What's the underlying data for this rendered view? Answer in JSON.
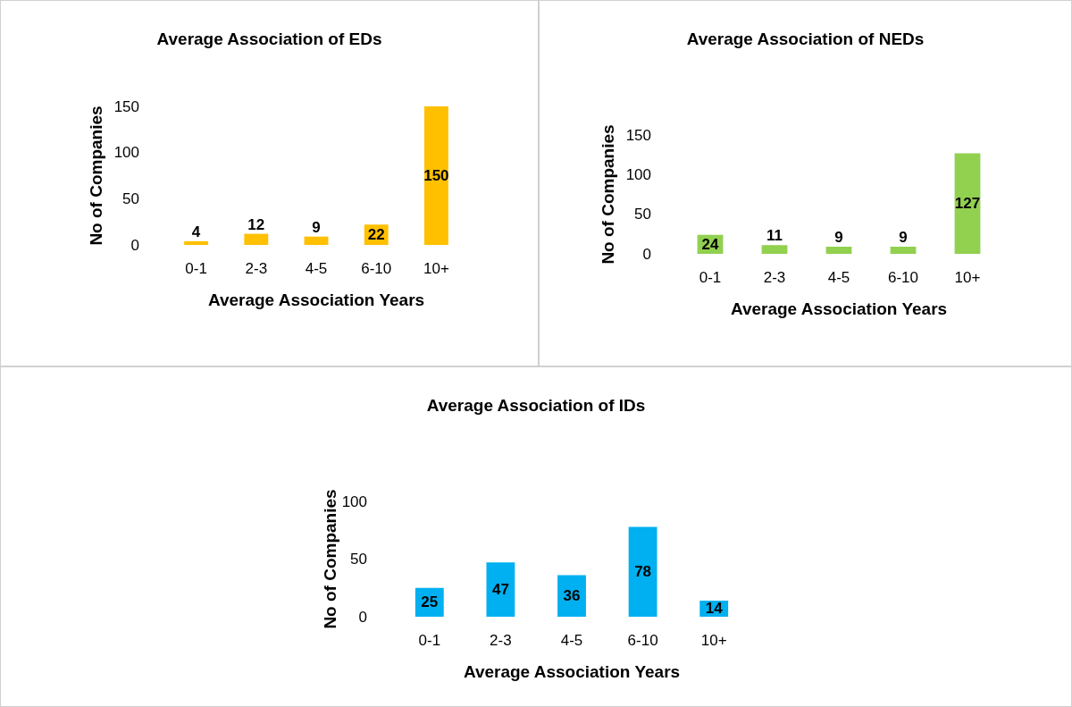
{
  "chart_data": [
    {
      "type": "bar",
      "title": "Average Association of EDs",
      "xlabel": "Average Association Years",
      "ylabel": "No of Companies",
      "categories": [
        "0-1",
        "2-3",
        "4-5",
        "6-10",
        "10+"
      ],
      "values": [
        4,
        12,
        9,
        22,
        150
      ],
      "color": "#ffc000",
      "ylim": [
        0,
        150
      ],
      "yticks": [
        0,
        50,
        100,
        150
      ],
      "data_labels": true,
      "grid": false
    },
    {
      "type": "bar",
      "title": "Average Association of NEDs",
      "xlabel": "Average Association Years",
      "ylabel": "No of Companies",
      "categories": [
        "0-1",
        "2-3",
        "4-5",
        "6-10",
        "10+"
      ],
      "values": [
        24,
        11,
        9,
        9,
        127
      ],
      "color": "#92d050",
      "ylim": [
        0,
        150
      ],
      "yticks": [
        0,
        50,
        100,
        150
      ],
      "data_labels": true,
      "grid": false
    },
    {
      "type": "bar",
      "title": "Average Association of IDs",
      "xlabel": "Average Association Years",
      "ylabel": "No of Companies",
      "categories": [
        "0-1",
        "2-3",
        "4-5",
        "6-10",
        "10+"
      ],
      "values": [
        25,
        47,
        36,
        78,
        14
      ],
      "color": "#00b0f0",
      "ylim": [
        0,
        100
      ],
      "yticks": [
        0,
        50,
        100
      ],
      "data_labels": true,
      "grid": false
    }
  ]
}
